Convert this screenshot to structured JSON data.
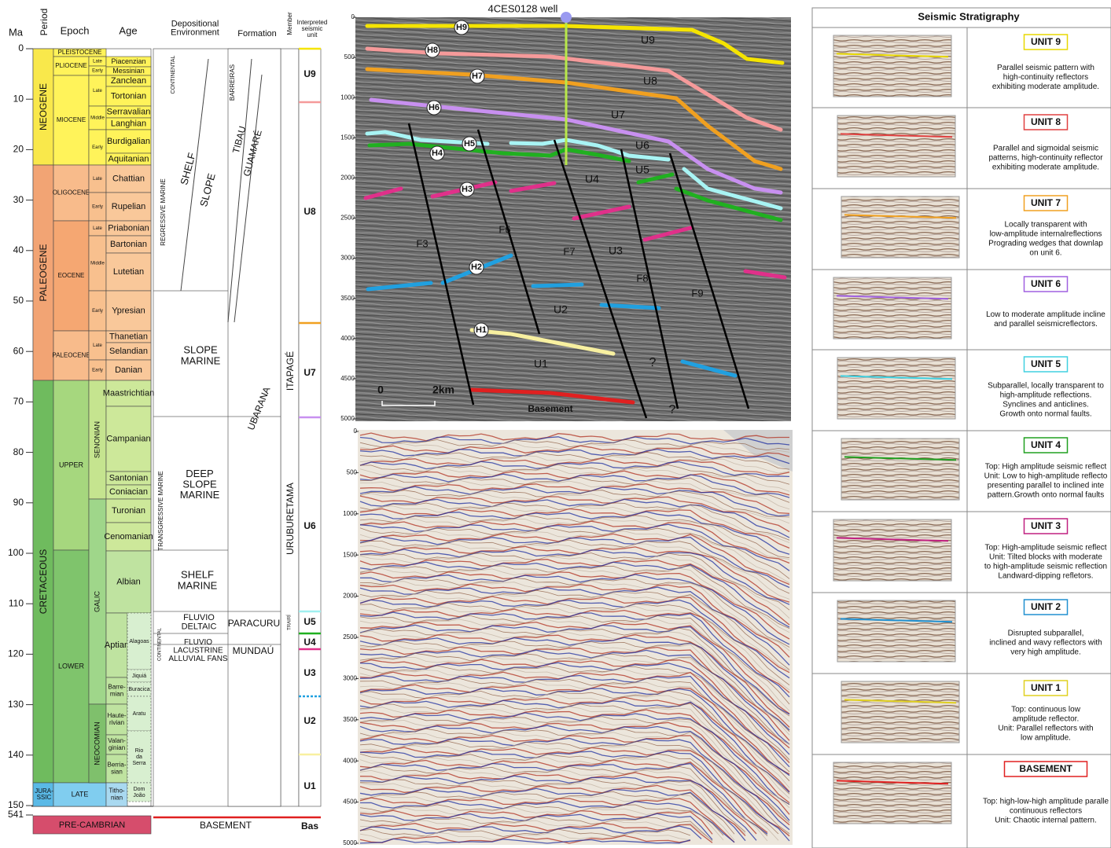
{
  "chronostratigraphy": {
    "headers": {
      "ma": "Ma",
      "period": "Period",
      "epoch": "Epoch",
      "age": "Age",
      "environment": [
        "Depositional",
        "Environment"
      ],
      "formation": "Formation",
      "member": "Member",
      "unit": [
        "Interpreted",
        "seismic",
        "unit"
      ]
    },
    "ma_ticks": [
      0,
      10,
      20,
      30,
      40,
      50,
      60,
      70,
      80,
      90,
      100,
      110,
      120,
      130,
      140,
      150,
      541
    ],
    "periods": [
      "NEOGENE",
      "PALEOGENE",
      "CRETACEOUS",
      [
        "JURA-",
        "SSIC"
      ],
      "PRE-CAMBRIAN"
    ],
    "epochs": [
      "PLEISTOCENE",
      "PLIOCENE",
      "MIOCENE",
      "OLIGOCENE",
      "EOCENE",
      "PALEOCENE",
      "UPPER",
      "LOWER",
      "LATE"
    ],
    "subepochs": [
      "Late",
      "Early",
      "Late",
      "Middle",
      "Early",
      "Late",
      "Early",
      "Late",
      "Middle",
      "Early",
      "Late",
      "Early",
      "SENONIAN",
      "GALIC",
      "NEOCOMIAN"
    ],
    "ages": [
      "Piacenzian",
      "Messinian",
      "Zanclean",
      "Tortonian",
      "Serravalian",
      "Langhian",
      "Burdigalian",
      "Aquitanian",
      "Chattian",
      "Rupelian",
      "Priabonian",
      "Bartonian",
      "Lutetian",
      "Ypresian",
      "Thanetian",
      "Selandian",
      "Danian",
      "Maastrichtian",
      "Campanian",
      "Santonian",
      "Coniacian",
      "Turonian",
      "Cenomanian",
      "Albian",
      "Aptian",
      [
        "Barre-",
        "mian"
      ],
      [
        "Haute-",
        "rivian"
      ],
      [
        "Valan-",
        "ginian"
      ],
      [
        "Berria-",
        "sian"
      ],
      [
        "Titho-",
        "nian"
      ]
    ],
    "local_ages": [
      "Alagoas",
      "Jiquiá",
      "Buracica",
      "Aratu",
      [
        "Rio",
        "da",
        "Serra"
      ],
      [
        "Dom",
        "João"
      ]
    ],
    "environments": [
      "CONTINENTAL",
      "SHELF",
      "SLOPE",
      "REGRESSIVE MARINE",
      [
        "SLOPE",
        "MARINE"
      ],
      [
        "DEEP",
        "SLOPE",
        "MARINE"
      ],
      [
        "SHELF",
        "MARINE"
      ],
      "TRANSGRESSIVE MARINE",
      [
        "FLUVIO",
        "DELTAIC"
      ],
      [
        "FLUVIO",
        "LACUSTRINE",
        "ALLUVIAL FANS"
      ],
      "CONTINENTAL"
    ],
    "formations": [
      "BARREIRAS",
      "TIBAU",
      "GUAMARÉ",
      "UBARANA",
      "PARACURU",
      "MUNDAÚ"
    ],
    "members": [
      "ITAPAGÉ",
      "URUBURETAMA",
      "TRAIRÍ"
    ],
    "units": [
      "U9",
      "U8",
      "U7",
      "U6",
      "U5",
      "U4",
      "U3",
      "U2",
      "U1",
      "Bas"
    ],
    "basement": "BASEMENT"
  },
  "interpreted_section": {
    "well": "4CES0128 well",
    "depth_ticks": [
      0,
      500,
      1000,
      1500,
      2000,
      2500,
      3000,
      3500,
      4000,
      4500,
      5000
    ],
    "horizons": [
      "H9",
      "H8",
      "H7",
      "H6",
      "H5",
      "H4",
      "H3",
      "H2",
      "H1"
    ],
    "units": [
      "U9",
      "U8",
      "U7",
      "U6",
      "U5",
      "U4",
      "U3",
      "U2",
      "U1"
    ],
    "faults": [
      "F3",
      "F6",
      "F7",
      "F8",
      "F9"
    ],
    "uncertain": [
      "?",
      "?"
    ],
    "scale": [
      "0",
      "2km"
    ],
    "basement": "Basement"
  },
  "raw_section": {
    "depth_ticks": [
      0,
      500,
      1000,
      1500,
      2000,
      2500,
      3000,
      3500,
      4000,
      4500,
      5000
    ]
  },
  "stratigraphy_table": {
    "title": "Seismic Stratigraphy",
    "rows": [
      {
        "label": "UNIT 9",
        "description": [
          "Parallel seismic pattern with",
          "high-continuity reflectors",
          "exhibiting moderate amplitude."
        ]
      },
      {
        "label": "UNIT 8",
        "description": [
          "Parallel and sigmoidal seismic",
          "patterns, high-continuity reflector",
          "exhibiting moderate amplitude."
        ]
      },
      {
        "label": "UNIT 7",
        "description": [
          "Locally transparent with",
          "low-amplitude internalreflections",
          "Prograding wedges that downlap",
          "on unit 6."
        ]
      },
      {
        "label": "UNIT 6",
        "description": [
          "Low to moderate amplitude incline",
          "and parallel seismicreflectors."
        ]
      },
      {
        "label": "UNIT 5",
        "description": [
          "Subparallel, locally transparent to",
          "high-amplitude reflections.",
          "Synclines and anticlines.",
          "Growth onto normal faults."
        ]
      },
      {
        "label": "UNIT 4",
        "description": [
          "Top: High amplitude seismic reflect",
          "Unit: Low to high-amplitude reflecto",
          "presenting parallel to inclined inte",
          "pattern.Growth onto normal faults"
        ]
      },
      {
        "label": "UNIT 3",
        "description": [
          "Top: High-amplitude seismic reflect",
          "Unit: Tilted blocks with moderate",
          "to high-amplitude seismic reflection",
          "Landward-dipping refletors."
        ]
      },
      {
        "label": "UNIT 2",
        "description": [
          "Disrupted subparallel,",
          "inclined and wavy reflectors with",
          "very high amplitude."
        ]
      },
      {
        "label": "UNIT 1",
        "description": [
          "Top: continuous low",
          "amplitude reflector.",
          "Unit: Parallel reflectors with",
          "low amplitude."
        ]
      },
      {
        "label": "BASEMENT",
        "description": [
          "Top: high-low-high amplitude paralle",
          "continuous reflectors",
          "Unit: Chaotic internal pattern."
        ]
      }
    ]
  }
}
